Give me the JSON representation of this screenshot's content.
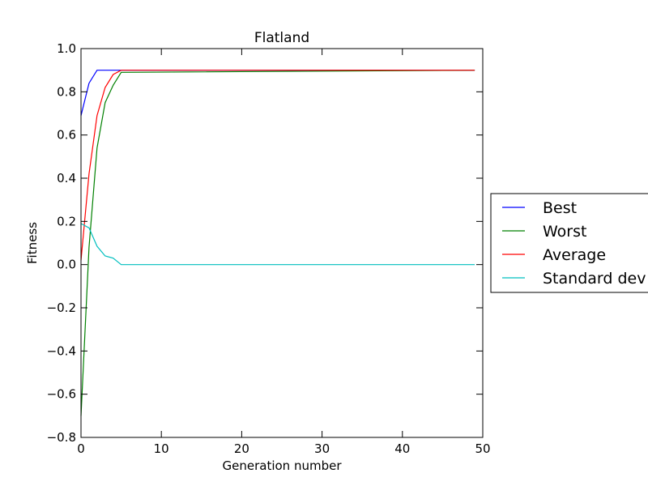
{
  "chart_data": {
    "type": "line",
    "title": "Flatland",
    "xlabel": "Generation number",
    "ylabel": "Fitness",
    "xlim": [
      0,
      50
    ],
    "ylim": [
      -0.8,
      1.0
    ],
    "xticks": [
      0,
      10,
      20,
      30,
      40,
      50
    ],
    "yticks": [
      -0.8,
      -0.6,
      -0.4,
      -0.2,
      0.0,
      0.2,
      0.4,
      0.6,
      0.8,
      1.0
    ],
    "xtick_labels": [
      "0",
      "10",
      "20",
      "30",
      "40",
      "50"
    ],
    "ytick_labels": [
      "−0.8",
      "−0.6",
      "−0.4",
      "−0.2",
      "0.0",
      "0.2",
      "0.4",
      "0.6",
      "0.8",
      "1.0"
    ],
    "grid": false,
    "legend_position": "outside-right",
    "series": [
      {
        "name": "Best",
        "color": "#0000ff",
        "x": [
          0,
          1,
          2,
          3,
          4,
          5,
          49
        ],
        "y": [
          0.69,
          0.84,
          0.9,
          0.9,
          0.9,
          0.9,
          0.9
        ]
      },
      {
        "name": "Worst",
        "color": "#008000",
        "x": [
          0,
          1,
          2,
          3,
          4,
          5,
          49
        ],
        "y": [
          -0.7,
          0.08,
          0.54,
          0.75,
          0.83,
          0.89,
          0.9
        ]
      },
      {
        "name": "Average",
        "color": "#ff0000",
        "x": [
          0,
          1,
          2,
          3,
          4,
          5,
          49
        ],
        "y": [
          0.02,
          0.42,
          0.69,
          0.82,
          0.88,
          0.9,
          0.9
        ]
      },
      {
        "name": "Standard dev",
        "color": "#00bfbf",
        "x": [
          0,
          1,
          2,
          3,
          4,
          5,
          49
        ],
        "y": [
          0.19,
          0.17,
          0.085,
          0.04,
          0.03,
          0.0,
          0.0
        ]
      }
    ]
  }
}
